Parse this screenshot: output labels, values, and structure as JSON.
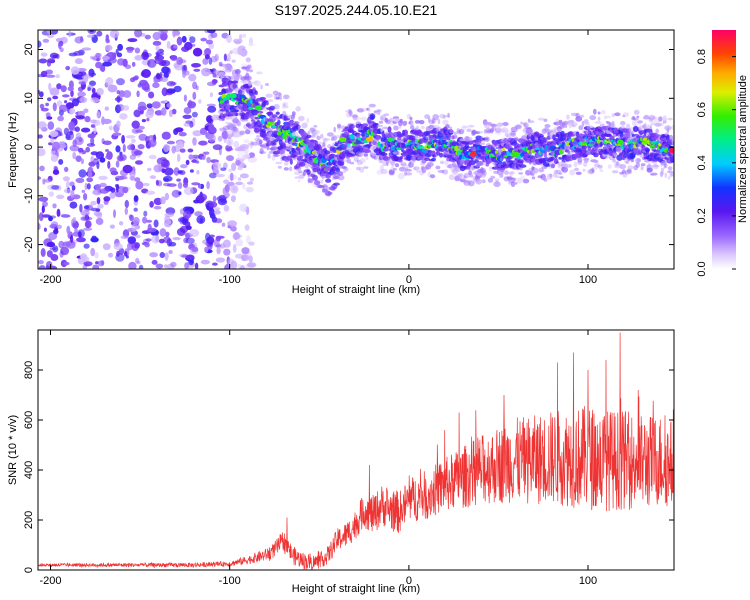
{
  "title": "S197.2025.244.05.10.E21",
  "chart_data": [
    {
      "type": "heatmap",
      "name": "spectrogram",
      "xlabel": "Height of straight line (km)",
      "ylabel": "Frequency (Hz)",
      "xlim": [
        -207,
        148
      ],
      "ylim": [
        -25,
        24
      ],
      "xticks": [
        -200,
        -100,
        0,
        100
      ],
      "yticks": [
        -20,
        -10,
        0,
        10,
        20
      ],
      "colorbar": {
        "label": "Normalized spectral amplitude",
        "range": [
          0.0,
          0.9
        ],
        "ticks": [
          0.0,
          0.2,
          0.4,
          0.6,
          0.8
        ],
        "tick_labels": [
          "0.0",
          "0.2",
          "0.4",
          "0.6",
          "0.8"
        ]
      },
      "noise_region_x": [
        -207,
        -95
      ],
      "ridge": {
        "x": [
          -105,
          -98,
          -90,
          -85,
          -80,
          -75,
          -70,
          -65,
          -60,
          -55,
          -50,
          -45,
          -40,
          -35,
          -30,
          -25,
          -20,
          -15,
          -10,
          -5,
          0,
          10,
          20,
          30,
          40,
          50,
          60,
          70,
          80,
          90,
          100,
          110,
          120,
          130,
          140,
          148
        ],
        "y": [
          9.5,
          10.5,
          9.0,
          8.0,
          5.5,
          4.0,
          3.0,
          2.0,
          0.5,
          -1.0,
          -2.5,
          -4.0,
          -2.0,
          1.0,
          1.5,
          1.5,
          3.5,
          0.0,
          1.0,
          0.0,
          0.5,
          0.0,
          1.0,
          -1.5,
          -1.0,
          -1.5,
          -1.5,
          0.0,
          -1.0,
          0.5,
          1.0,
          1.0,
          0.5,
          1.0,
          0.0,
          -0.5
        ]
      }
    },
    {
      "type": "line",
      "name": "snr",
      "xlabel": "Height of straight line (km)",
      "ylabel": "SNR (10 * v/v)",
      "xlim": [
        -207,
        148
      ],
      "ylim": [
        0,
        960
      ],
      "xticks": [
        -200,
        -100,
        0,
        100
      ],
      "yticks": [
        0,
        200,
        400,
        600,
        800
      ],
      "color": "#ee3333",
      "envelope": {
        "x": [
          -207,
          -180,
          -150,
          -120,
          -100,
          -90,
          -80,
          -75,
          -70,
          -65,
          -60,
          -55,
          -50,
          -45,
          -40,
          -35,
          -30,
          -25,
          -20,
          -15,
          -10,
          -5,
          0,
          10,
          20,
          30,
          40,
          50,
          60,
          70,
          80,
          90,
          100,
          110,
          120,
          130,
          140,
          148
        ],
        "y": [
          20,
          20,
          20,
          20,
          25,
          40,
          60,
          80,
          120,
          60,
          40,
          30,
          35,
          60,
          120,
          140,
          180,
          240,
          220,
          260,
          240,
          230,
          280,
          300,
          340,
          370,
          400,
          420,
          440,
          440,
          450,
          450,
          450,
          440,
          440,
          430,
          440,
          420
        ]
      },
      "spread": {
        "x": [
          -207,
          -100,
          -80,
          -70,
          -50,
          -30,
          -20,
          0,
          20,
          40,
          60,
          80,
          100,
          120,
          148
        ],
        "y": [
          6,
          10,
          25,
          40,
          30,
          60,
          80,
          90,
          110,
          140,
          170,
          190,
          210,
          200,
          180
        ]
      },
      "peaks": [
        {
          "x": -68,
          "y": 210
        },
        {
          "x": -22,
          "y": 420
        },
        {
          "x": 20,
          "y": 560
        },
        {
          "x": 28,
          "y": 630
        },
        {
          "x": 53,
          "y": 700
        },
        {
          "x": 83,
          "y": 830
        },
        {
          "x": 92,
          "y": 870
        },
        {
          "x": 100,
          "y": 800
        },
        {
          "x": 110,
          "y": 840
        },
        {
          "x": 118,
          "y": 950
        },
        {
          "x": 128,
          "y": 720
        }
      ]
    }
  ]
}
